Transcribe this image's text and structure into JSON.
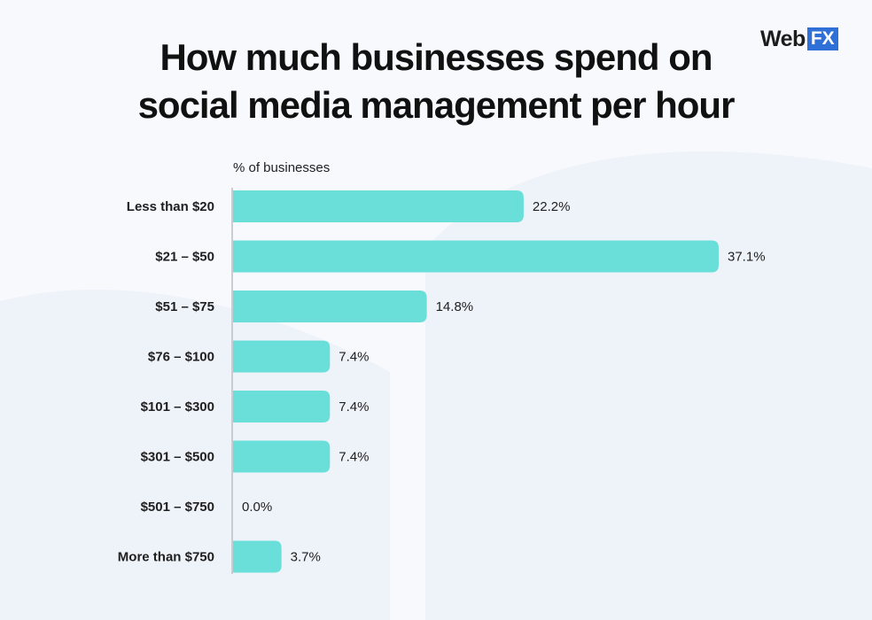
{
  "logo": {
    "web": "Web",
    "fx": "FX"
  },
  "colors": {
    "bar": "#6adfd9",
    "axis": "#c9ccd3",
    "text": "#1f1f1f",
    "background": "#f7f9fd"
  },
  "chart_data": {
    "type": "bar",
    "orientation": "horizontal",
    "title": "How much businesses spend on social media management per hour",
    "xlabel": "% of businesses",
    "ylabel": "",
    "xlim": [
      0,
      37.1
    ],
    "grid": false,
    "categories": [
      "Less than $20",
      "$21 – $50",
      "$51 – $75",
      "$76 – $100",
      "$101 – $300",
      "$301 – $500",
      "$501 – $750",
      "More than $750"
    ],
    "values": [
      22.2,
      37.1,
      14.8,
      7.4,
      7.4,
      7.4,
      0.0,
      3.7
    ],
    "value_labels": [
      "22.2%",
      "37.1%",
      "14.8%",
      "7.4%",
      "7.4%",
      "7.4%",
      "0.0%",
      "3.7%"
    ]
  }
}
